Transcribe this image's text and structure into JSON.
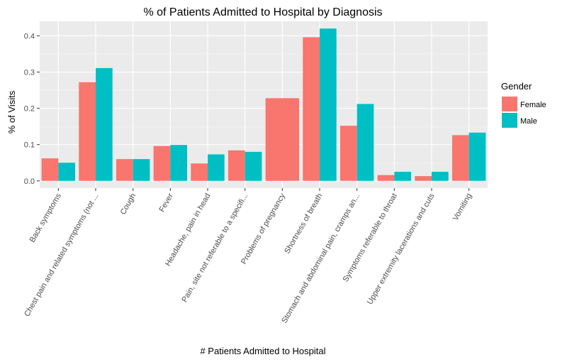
{
  "chart_data": {
    "type": "bar",
    "title": "% of Patients Admitted to Hospital by Diagnosis",
    "xlabel": "# Patients Admitted to Hospital",
    "ylabel": "% of Visits",
    "ylim": [
      -0.02,
      0.44
    ],
    "yticks": [
      0.0,
      0.1,
      0.2,
      0.3,
      0.4
    ],
    "ytick_labels": [
      "0.0",
      "0.1",
      "0.2",
      "0.3",
      "0.4"
    ],
    "grid": true,
    "legend_position": "right",
    "legend_title": "Gender",
    "categories": [
      "Back symptoms",
      "Chest pain and related symptoms (not ...",
      "Cough",
      "Fever",
      "Headache, pain in head",
      "Pain, site not referable to a specifi...",
      "Problems of pregnancy",
      "Shortness of breath",
      "Stomach and abdominal pain, cramps an...",
      "Symptoms referable to throat",
      "Upper extremity lacerations and cuts",
      "Vomiting"
    ],
    "series": [
      {
        "name": "Female",
        "color": "#F8766D",
        "values": [
          0.062,
          0.272,
          0.06,
          0.096,
          0.048,
          0.084,
          0.228,
          0.396,
          0.152,
          0.016,
          0.013,
          0.126
        ]
      },
      {
        "name": "Male",
        "color": "#00BFC4",
        "values": [
          0.05,
          0.311,
          0.06,
          0.099,
          0.073,
          0.08,
          null,
          0.42,
          0.212,
          0.025,
          0.025,
          0.133
        ]
      }
    ]
  }
}
